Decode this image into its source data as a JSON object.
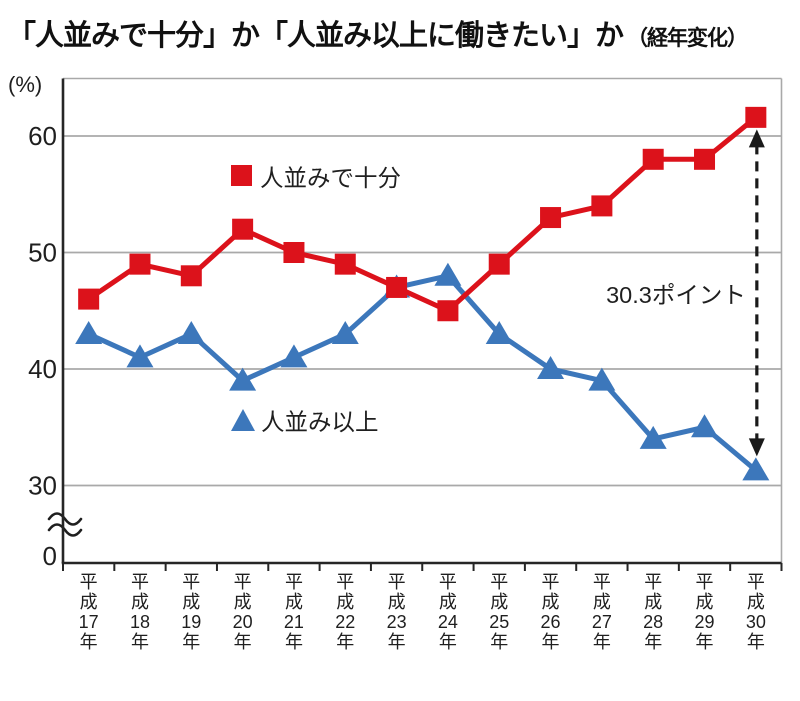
{
  "title": {
    "main": "「人並みで十分」か「人並み以上に働きたい」か",
    "suffix": "（経年変化）"
  },
  "chart_data": {
    "type": "line",
    "unit_label": "(%)",
    "categories": [
      "平成17年",
      "平成18年",
      "平成19年",
      "平成20年",
      "平成21年",
      "平成22年",
      "平成23年",
      "平成24年",
      "平成25年",
      "平成26年",
      "平成27年",
      "平成28年",
      "平成29年",
      "平成30年"
    ],
    "series": [
      {
        "name": "人並みで十分",
        "marker": "square",
        "color": "#dc121b",
        "values": [
          46,
          49,
          48,
          52,
          50,
          49,
          47,
          45,
          49,
          53,
          54,
          58,
          58,
          61.6
        ]
      },
      {
        "name": "人並み以上",
        "marker": "triangle",
        "color": "#3c77bb",
        "values": [
          43,
          41,
          43,
          39,
          41,
          43,
          47,
          48,
          43,
          40,
          39,
          34,
          35,
          31.3
        ]
      }
    ],
    "y_axis": {
      "ticks_shown": [
        0,
        30,
        40,
        50,
        60
      ],
      "axis_break_between": [
        0,
        30
      ]
    },
    "grid": true,
    "legend_position": "inside-plot",
    "annotation": {
      "text": "30.3ポイント",
      "category": "平成30年",
      "style": "vertical-dashed-double-arrow"
    },
    "colors": {
      "grid": "#a9a9a9",
      "axis": "#262626",
      "text": "#1f1f1f",
      "arrow": "#1a1a1a"
    }
  }
}
